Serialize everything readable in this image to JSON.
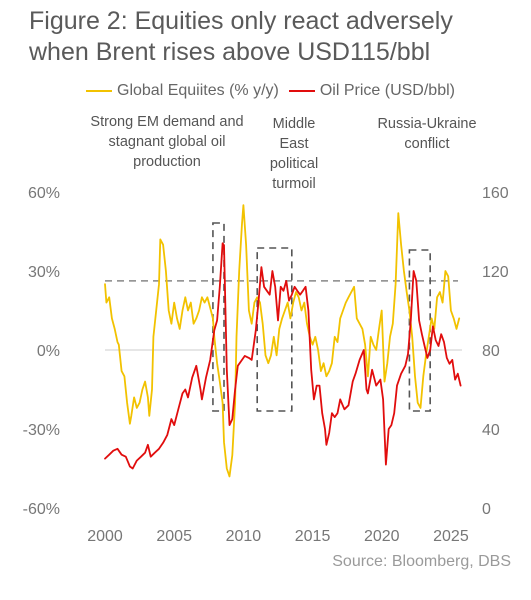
{
  "title_lines": [
    "Figure 2: Equities only react adversely",
    "when Brent rises above USD115/bbl"
  ],
  "source": "Source: Bloomberg, DBS",
  "annotations": [
    "Strong EM demand and stagnant global oil production",
    "Middle East political turmoil",
    "Russia-Ukraine conflict"
  ],
  "colors": {
    "equities": "#f2c200",
    "oil": "#e10d0d",
    "threshold": "#888888",
    "boxes": "#555555",
    "zero_line": "#cccccc"
  },
  "chart_data": {
    "type": "line",
    "title": "Figure 2: Equities only react adversely when Brent rises above USD115/bbl",
    "x_ticks": [
      "2000",
      "2005",
      "2010",
      "2015",
      "2020",
      "2025"
    ],
    "xlim": [
      2000,
      2025.8
    ],
    "y_left": {
      "ticks": [
        "60%",
        "30%",
        "0%",
        "-30%",
        "-60%"
      ],
      "ylim": [
        -60,
        60
      ]
    },
    "y_right": {
      "ticks": [
        "160",
        "120",
        "80",
        "40",
        "0"
      ],
      "ylim": [
        0,
        160
      ]
    },
    "grid": false,
    "legend": "top",
    "threshold_line": {
      "axis": "right",
      "value": 115,
      "style": "dashed"
    },
    "highlight_periods": [
      [
        2007.8,
        2008.6
      ],
      [
        2011.0,
        2013.5
      ],
      [
        2022.0,
        2023.5
      ]
    ],
    "series": [
      {
        "name": "Global Equiites (% y/y)",
        "axis": "left",
        "points": [
          [
            2000.0,
            25
          ],
          [
            2000.1,
            18
          ],
          [
            2000.3,
            20
          ],
          [
            2000.5,
            12
          ],
          [
            2000.7,
            8
          ],
          [
            2000.9,
            3
          ],
          [
            2001.0,
            2
          ],
          [
            2001.2,
            -8
          ],
          [
            2001.4,
            -10
          ],
          [
            2001.6,
            -20
          ],
          [
            2001.8,
            -28
          ],
          [
            2001.9,
            -25
          ],
          [
            2002.1,
            -18
          ],
          [
            2002.3,
            -22
          ],
          [
            2002.5,
            -20
          ],
          [
            2002.7,
            -15
          ],
          [
            2002.9,
            -12
          ],
          [
            2003.1,
            -18
          ],
          [
            2003.2,
            -25
          ],
          [
            2003.4,
            -15
          ],
          [
            2003.5,
            5
          ],
          [
            2003.7,
            15
          ],
          [
            2003.9,
            25
          ],
          [
            2004.0,
            42
          ],
          [
            2004.2,
            40
          ],
          [
            2004.4,
            30
          ],
          [
            2004.6,
            15
          ],
          [
            2004.8,
            10
          ],
          [
            2005.0,
            18
          ],
          [
            2005.2,
            12
          ],
          [
            2005.4,
            8
          ],
          [
            2005.6,
            15
          ],
          [
            2005.8,
            20
          ],
          [
            2006.0,
            15
          ],
          [
            2006.2,
            18
          ],
          [
            2006.4,
            10
          ],
          [
            2006.6,
            12
          ],
          [
            2006.8,
            15
          ],
          [
            2007.0,
            20
          ],
          [
            2007.2,
            18
          ],
          [
            2007.4,
            20
          ],
          [
            2007.6,
            16
          ],
          [
            2007.8,
            12
          ],
          [
            2007.9,
            5
          ],
          [
            2008.1,
            -5
          ],
          [
            2008.3,
            -12
          ],
          [
            2008.5,
            -20
          ],
          [
            2008.6,
            -35
          ],
          [
            2008.8,
            -45
          ],
          [
            2009.0,
            -48
          ],
          [
            2009.2,
            -40
          ],
          [
            2009.4,
            -20
          ],
          [
            2009.5,
            5
          ],
          [
            2009.7,
            30
          ],
          [
            2009.9,
            48
          ],
          [
            2010.0,
            55
          ],
          [
            2010.2,
            40
          ],
          [
            2010.4,
            15
          ],
          [
            2010.6,
            10
          ],
          [
            2010.8,
            18
          ],
          [
            2011.0,
            20
          ],
          [
            2011.2,
            18
          ],
          [
            2011.4,
            10
          ],
          [
            2011.6,
            -2
          ],
          [
            2011.8,
            -5
          ],
          [
            2012.0,
            -2
          ],
          [
            2012.2,
            5
          ],
          [
            2012.4,
            -2
          ],
          [
            2012.6,
            8
          ],
          [
            2012.8,
            12
          ],
          [
            2013.0,
            15
          ],
          [
            2013.2,
            18
          ],
          [
            2013.4,
            12
          ],
          [
            2013.6,
            18
          ],
          [
            2013.8,
            22
          ],
          [
            2014.0,
            20
          ],
          [
            2014.2,
            15
          ],
          [
            2014.4,
            18
          ],
          [
            2014.6,
            10
          ],
          [
            2014.8,
            5
          ],
          [
            2015.0,
            2
          ],
          [
            2015.2,
            5
          ],
          [
            2015.4,
            0
          ],
          [
            2015.6,
            -8
          ],
          [
            2015.8,
            -5
          ],
          [
            2016.0,
            -10
          ],
          [
            2016.2,
            -8
          ],
          [
            2016.4,
            -5
          ],
          [
            2016.6,
            5
          ],
          [
            2016.8,
            3
          ],
          [
            2017.0,
            12
          ],
          [
            2017.2,
            15
          ],
          [
            2017.4,
            18
          ],
          [
            2017.6,
            20
          ],
          [
            2017.8,
            22
          ],
          [
            2018.0,
            24
          ],
          [
            2018.2,
            12
          ],
          [
            2018.4,
            10
          ],
          [
            2018.6,
            8
          ],
          [
            2018.8,
            2
          ],
          [
            2019.0,
            -10
          ],
          [
            2019.2,
            5
          ],
          [
            2019.4,
            2
          ],
          [
            2019.6,
            0
          ],
          [
            2019.8,
            8
          ],
          [
            2020.0,
            15
          ],
          [
            2020.2,
            -12
          ],
          [
            2020.4,
            -5
          ],
          [
            2020.6,
            5
          ],
          [
            2020.8,
            10
          ],
          [
            2021.0,
            25
          ],
          [
            2021.2,
            52
          ],
          [
            2021.4,
            40
          ],
          [
            2021.6,
            30
          ],
          [
            2021.8,
            22
          ],
          [
            2022.0,
            15
          ],
          [
            2022.2,
            5
          ],
          [
            2022.4,
            -10
          ],
          [
            2022.6,
            -20
          ],
          [
            2022.8,
            -22
          ],
          [
            2023.0,
            -10
          ],
          [
            2023.2,
            -2
          ],
          [
            2023.4,
            5
          ],
          [
            2023.6,
            12
          ],
          [
            2023.8,
            8
          ],
          [
            2024.0,
            20
          ],
          [
            2024.2,
            22
          ],
          [
            2024.4,
            18
          ],
          [
            2024.6,
            30
          ],
          [
            2024.8,
            28
          ],
          [
            2025.0,
            15
          ],
          [
            2025.2,
            12
          ],
          [
            2025.4,
            8
          ],
          [
            2025.6,
            12
          ]
        ]
      },
      {
        "name": "Oil Price (USD/bbl)",
        "axis": "right",
        "points": [
          [
            2000.0,
            25
          ],
          [
            2000.3,
            27
          ],
          [
            2000.6,
            29
          ],
          [
            2000.9,
            30
          ],
          [
            2001.2,
            27
          ],
          [
            2001.5,
            26
          ],
          [
            2001.8,
            21
          ],
          [
            2002.0,
            20
          ],
          [
            2002.3,
            24
          ],
          [
            2002.6,
            26
          ],
          [
            2002.9,
            28
          ],
          [
            2003.1,
            32
          ],
          [
            2003.3,
            26
          ],
          [
            2003.6,
            28
          ],
          [
            2003.9,
            30
          ],
          [
            2004.2,
            33
          ],
          [
            2004.5,
            37
          ],
          [
            2004.8,
            45
          ],
          [
            2005.0,
            42
          ],
          [
            2005.3,
            50
          ],
          [
            2005.6,
            58
          ],
          [
            2005.8,
            60
          ],
          [
            2006.0,
            56
          ],
          [
            2006.3,
            66
          ],
          [
            2006.6,
            72
          ],
          [
            2006.9,
            60
          ],
          [
            2007.0,
            55
          ],
          [
            2007.3,
            66
          ],
          [
            2007.6,
            75
          ],
          [
            2007.9,
            90
          ],
          [
            2008.1,
            95
          ],
          [
            2008.3,
            112
          ],
          [
            2008.5,
            134
          ],
          [
            2008.6,
            133
          ],
          [
            2008.8,
            70
          ],
          [
            2009.0,
            42
          ],
          [
            2009.2,
            45
          ],
          [
            2009.4,
            60
          ],
          [
            2009.6,
            72
          ],
          [
            2009.9,
            75
          ],
          [
            2010.1,
            77
          ],
          [
            2010.4,
            76
          ],
          [
            2010.6,
            75
          ],
          [
            2010.9,
            90
          ],
          [
            2011.1,
            105
          ],
          [
            2011.3,
            122
          ],
          [
            2011.5,
            112
          ],
          [
            2011.7,
            110
          ],
          [
            2011.9,
            108
          ],
          [
            2012.1,
            120
          ],
          [
            2012.3,
            112
          ],
          [
            2012.5,
            95
          ],
          [
            2012.7,
            112
          ],
          [
            2012.9,
            110
          ],
          [
            2013.1,
            115
          ],
          [
            2013.3,
            105
          ],
          [
            2013.5,
            108
          ],
          [
            2013.7,
            112
          ],
          [
            2013.9,
            110
          ],
          [
            2014.1,
            108
          ],
          [
            2014.3,
            110
          ],
          [
            2014.5,
            112
          ],
          [
            2014.7,
            100
          ],
          [
            2014.9,
            70
          ],
          [
            2015.1,
            55
          ],
          [
            2015.3,
            62
          ],
          [
            2015.5,
            62
          ],
          [
            2015.7,
            48
          ],
          [
            2015.9,
            40
          ],
          [
            2016.0,
            32
          ],
          [
            2016.2,
            38
          ],
          [
            2016.4,
            48
          ],
          [
            2016.6,
            46
          ],
          [
            2016.8,
            48
          ],
          [
            2017.0,
            55
          ],
          [
            2017.3,
            50
          ],
          [
            2017.6,
            52
          ],
          [
            2017.9,
            64
          ],
          [
            2018.1,
            68
          ],
          [
            2018.4,
            75
          ],
          [
            2018.7,
            80
          ],
          [
            2018.9,
            60
          ],
          [
            2019.0,
            58
          ],
          [
            2019.3,
            70
          ],
          [
            2019.6,
            62
          ],
          [
            2019.9,
            65
          ],
          [
            2020.1,
            55
          ],
          [
            2020.3,
            22
          ],
          [
            2020.5,
            40
          ],
          [
            2020.7,
            42
          ],
          [
            2020.9,
            48
          ],
          [
            2021.1,
            62
          ],
          [
            2021.4,
            68
          ],
          [
            2021.7,
            72
          ],
          [
            2021.9,
            78
          ],
          [
            2022.1,
            95
          ],
          [
            2022.3,
            120
          ],
          [
            2022.5,
            115
          ],
          [
            2022.7,
            95
          ],
          [
            2022.9,
            88
          ],
          [
            2023.1,
            82
          ],
          [
            2023.3,
            76
          ],
          [
            2023.5,
            80
          ],
          [
            2023.7,
            92
          ],
          [
            2023.9,
            85
          ],
          [
            2024.1,
            82
          ],
          [
            2024.3,
            88
          ],
          [
            2024.5,
            84
          ],
          [
            2024.7,
            76
          ],
          [
            2024.9,
            73
          ],
          [
            2025.1,
            75
          ],
          [
            2025.3,
            65
          ],
          [
            2025.5,
            68
          ],
          [
            2025.7,
            62
          ]
        ]
      }
    ]
  }
}
